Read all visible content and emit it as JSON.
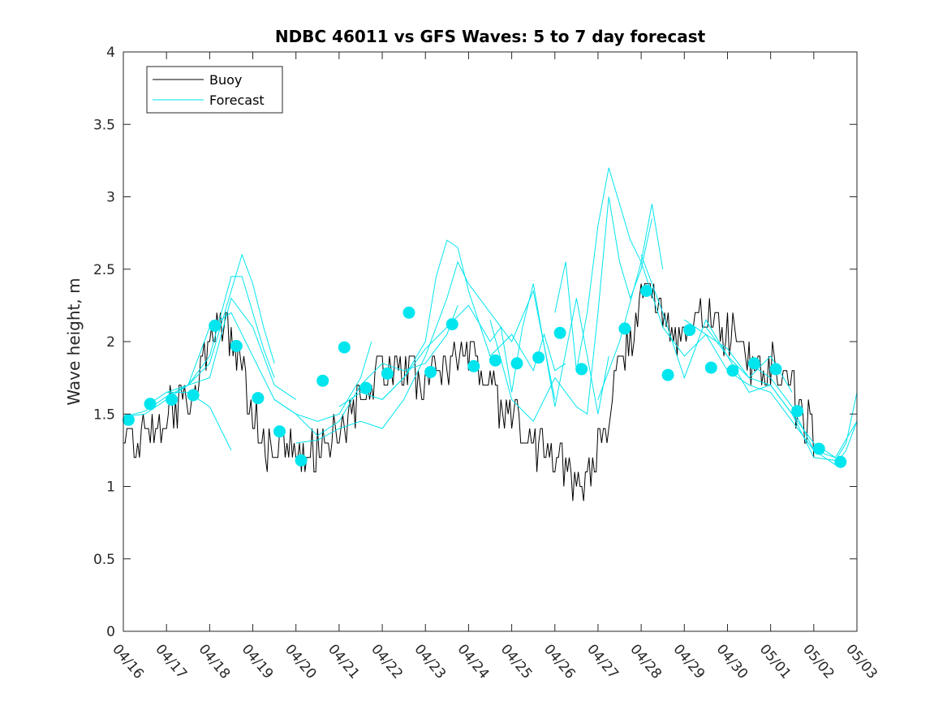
{
  "chart_data": {
    "type": "line",
    "title": "NDBC 46011 vs GFS Waves: 5 to 7 day forecast",
    "xlabel": "",
    "ylabel": "Wave height, m",
    "xlim": [
      0,
      17
    ],
    "ylim": [
      0,
      4
    ],
    "x_unit": "days from 04/16",
    "xticks": [
      "04/16",
      "04/17",
      "04/18",
      "04/19",
      "04/20",
      "04/21",
      "04/22",
      "04/23",
      "04/24",
      "04/25",
      "04/26",
      "04/27",
      "04/28",
      "04/29",
      "04/30",
      "05/01",
      "05/02",
      "05/03"
    ],
    "yticks": [
      "0",
      "0.5",
      "1",
      "1.5",
      "2",
      "2.5",
      "3",
      "3.5",
      "4"
    ],
    "grid": false,
    "legend_position": "top-left",
    "colors": {
      "buoy": "#000000",
      "forecast": "#00e5ee"
    },
    "series": [
      {
        "name": "Buoy",
        "style": "line",
        "anchors": [
          [
            0.0,
            1.35
          ],
          [
            0.25,
            1.25
          ],
          [
            0.5,
            1.35
          ],
          [
            0.75,
            1.4
          ],
          [
            1.0,
            1.5
          ],
          [
            1.25,
            1.55
          ],
          [
            1.5,
            1.6
          ],
          [
            1.75,
            1.75
          ],
          [
            2.0,
            1.95
          ],
          [
            2.2,
            2.2
          ],
          [
            2.35,
            2.05
          ],
          [
            2.5,
            1.95
          ],
          [
            2.75,
            1.8
          ],
          [
            3.0,
            1.5
          ],
          [
            3.25,
            1.3
          ],
          [
            3.5,
            1.25
          ],
          [
            3.75,
            1.3
          ],
          [
            4.0,
            1.2
          ],
          [
            4.25,
            1.18
          ],
          [
            4.5,
            1.25
          ],
          [
            4.75,
            1.3
          ],
          [
            5.0,
            1.4
          ],
          [
            5.25,
            1.5
          ],
          [
            5.5,
            1.6
          ],
          [
            5.75,
            1.7
          ],
          [
            6.0,
            1.75
          ],
          [
            6.25,
            1.78
          ],
          [
            6.5,
            1.8
          ],
          [
            6.75,
            1.8
          ],
          [
            7.0,
            1.75
          ],
          [
            7.25,
            1.8
          ],
          [
            7.5,
            1.85
          ],
          [
            7.75,
            1.9
          ],
          [
            8.0,
            1.92
          ],
          [
            8.25,
            1.8
          ],
          [
            8.5,
            1.65
          ],
          [
            8.75,
            1.55
          ],
          [
            9.0,
            1.45
          ],
          [
            9.25,
            1.35
          ],
          [
            9.5,
            1.3
          ],
          [
            9.75,
            1.25
          ],
          [
            10.0,
            1.2
          ],
          [
            10.25,
            1.12
          ],
          [
            10.5,
            1.08
          ],
          [
            10.75,
            1.07
          ],
          [
            11.0,
            1.2
          ],
          [
            11.25,
            1.5
          ],
          [
            11.5,
            1.8
          ],
          [
            11.75,
            2.0
          ],
          [
            12.0,
            2.3
          ],
          [
            12.15,
            2.5
          ],
          [
            12.35,
            2.35
          ],
          [
            12.5,
            2.15
          ],
          [
            12.75,
            2.05
          ],
          [
            13.0,
            2.0
          ],
          [
            13.25,
            2.1
          ],
          [
            13.5,
            2.2
          ],
          [
            13.75,
            2.2
          ],
          [
            14.0,
            2.05
          ],
          [
            14.25,
            1.95
          ],
          [
            14.5,
            1.85
          ],
          [
            14.75,
            1.8
          ],
          [
            15.0,
            1.85
          ],
          [
            15.25,
            1.75
          ],
          [
            15.5,
            1.65
          ],
          [
            15.75,
            1.45
          ],
          [
            16.0,
            1.35
          ]
        ]
      },
      {
        "name": "Forecast",
        "style": "line",
        "runs": [
          [
            [
              0,
              1.48
            ],
            [
              0.5,
              1.5
            ],
            [
              1.0,
              1.6
            ],
            [
              1.5,
              1.7
            ],
            [
              2.0,
              1.85
            ],
            [
              2.5,
              2.35
            ],
            [
              2.75,
              2.6
            ],
            [
              3.0,
              2.4
            ],
            [
              3.25,
              2.1
            ],
            [
              3.5,
              1.85
            ]
          ],
          [
            [
              0,
              1.48
            ],
            [
              0.5,
              1.52
            ],
            [
              1.0,
              1.62
            ],
            [
              1.5,
              1.7
            ],
            [
              2.0,
              1.9
            ],
            [
              2.5,
              2.45
            ],
            [
              2.75,
              2.45
            ],
            [
              3.0,
              2.2
            ],
            [
              3.25,
              1.95
            ],
            [
              3.5,
              1.75
            ]
          ],
          [
            [
              0.5,
              1.55
            ],
            [
              1.0,
              1.65
            ],
            [
              1.5,
              1.7
            ],
            [
              2.0,
              1.75
            ],
            [
              2.5,
              2.3
            ],
            [
              3.0,
              2.1
            ],
            [
              3.5,
              1.7
            ],
            [
              4.0,
              1.6
            ]
          ],
          [
            [
              1.0,
              1.65
            ],
            [
              1.5,
              1.65
            ],
            [
              2.0,
              1.55
            ],
            [
              2.5,
              1.25
            ]
          ],
          [
            [
              1.5,
              1.7
            ],
            [
              2.0,
              2.1
            ],
            [
              2.5,
              2.2
            ],
            [
              3.0,
              1.9
            ],
            [
              3.5,
              1.6
            ],
            [
              4.0,
              1.5
            ],
            [
              4.5,
              1.45
            ],
            [
              5.0,
              1.5
            ],
            [
              5.5,
              1.75
            ],
            [
              5.75,
              2.0
            ]
          ],
          [
            [
              3.5,
              1.6
            ],
            [
              4.0,
              1.5
            ],
            [
              4.5,
              1.35
            ],
            [
              5.0,
              1.45
            ],
            [
              5.5,
              1.7
            ],
            [
              6.0,
              1.85
            ],
            [
              6.5,
              1.8
            ],
            [
              7.0,
              1.85
            ],
            [
              7.5,
              2.05
            ],
            [
              7.75,
              2.25
            ]
          ],
          [
            [
              4.0,
              1.3
            ],
            [
              4.5,
              1.32
            ],
            [
              5.0,
              1.4
            ],
            [
              5.5,
              1.45
            ],
            [
              6.0,
              1.4
            ],
            [
              6.5,
              1.6
            ],
            [
              7.0,
              1.9
            ],
            [
              7.5,
              2.3
            ],
            [
              7.75,
              2.55
            ],
            [
              8.0,
              2.4
            ],
            [
              8.5,
              2.2
            ],
            [
              9.0,
              2.0
            ],
            [
              9.5,
              2.35
            ],
            [
              10.0,
              1.6
            ]
          ],
          [
            [
              5.0,
              1.55
            ],
            [
              5.5,
              1.65
            ],
            [
              6.0,
              1.6
            ],
            [
              6.5,
              1.75
            ],
            [
              7.0,
              2.0
            ],
            [
              7.25,
              2.45
            ],
            [
              7.5,
              2.7
            ],
            [
              7.75,
              2.65
            ],
            [
              8.0,
              2.35
            ],
            [
              8.5,
              1.9
            ],
            [
              9.0,
              2.05
            ],
            [
              9.5,
              1.8
            ],
            [
              9.75,
              2.05
            ],
            [
              10.0,
              1.8
            ],
            [
              10.25,
              1.85
            ]
          ],
          [
            [
              6.0,
              1.6
            ],
            [
              6.5,
              1.75
            ],
            [
              7.0,
              1.95
            ],
            [
              7.5,
              2.1
            ],
            [
              8.0,
              2.25
            ],
            [
              8.5,
              2.0
            ],
            [
              8.75,
              2.1
            ],
            [
              9.0,
              1.65
            ],
            [
              9.25,
              2.1
            ],
            [
              9.5,
              2.4
            ],
            [
              10.0,
              1.55
            ],
            [
              10.5,
              2.3
            ],
            [
              11.0,
              1.5
            ],
            [
              11.25,
              1.9
            ]
          ],
          [
            [
              8.5,
              2.15
            ],
            [
              9.0,
              1.6
            ],
            [
              9.5,
              1.45
            ],
            [
              10.0,
              1.75
            ],
            [
              10.5,
              1.55
            ],
            [
              10.75,
              1.5
            ],
            [
              11.0,
              2.2
            ],
            [
              11.25,
              3.0
            ],
            [
              11.5,
              2.55
            ],
            [
              11.75,
              2.3
            ],
            [
              12.0,
              2.5
            ],
            [
              12.25,
              2.85
            ]
          ],
          [
            [
              10.0,
              2.2
            ],
            [
              10.25,
              2.55
            ],
            [
              10.5,
              1.8
            ],
            [
              10.75,
              2.2
            ],
            [
              11.0,
              2.8
            ],
            [
              11.25,
              3.2
            ],
            [
              11.5,
              2.95
            ],
            [
              11.75,
              2.7
            ],
            [
              12.0,
              2.55
            ],
            [
              12.25,
              2.95
            ],
            [
              12.5,
              2.5
            ]
          ],
          [
            [
              11.0,
              1.6
            ],
            [
              11.5,
              2.0
            ],
            [
              12.0,
              2.55
            ],
            [
              12.5,
              2.1
            ],
            [
              13.0,
              1.9
            ],
            [
              13.5,
              2.05
            ],
            [
              14.0,
              1.95
            ],
            [
              14.5,
              1.75
            ],
            [
              15.0,
              1.9
            ],
            [
              15.5,
              1.65
            ]
          ],
          [
            [
              12.0,
              2.6
            ],
            [
              12.5,
              2.2
            ],
            [
              13.0,
              1.75
            ],
            [
              13.5,
              2.15
            ],
            [
              14.0,
              1.9
            ],
            [
              14.5,
              1.65
            ],
            [
              15.0,
              1.7
            ],
            [
              15.5,
              1.5
            ],
            [
              16.0,
              1.3
            ],
            [
              16.5,
              1.2
            ]
          ],
          [
            [
              13.0,
              2.15
            ],
            [
              13.5,
              2.05
            ],
            [
              14.0,
              1.8
            ],
            [
              14.5,
              1.7
            ],
            [
              15.0,
              1.65
            ],
            [
              15.5,
              1.45
            ],
            [
              16.0,
              1.25
            ],
            [
              16.5,
              1.2
            ],
            [
              17.0,
              1.45
            ]
          ],
          [
            [
              13.5,
              2.1
            ],
            [
              14.0,
              1.9
            ],
            [
              14.5,
              1.75
            ],
            [
              15.0,
              1.7
            ],
            [
              15.5,
              1.5
            ],
            [
              16.0,
              1.2
            ],
            [
              16.5,
              1.18
            ],
            [
              16.75,
              1.3
            ],
            [
              17.0,
              1.65
            ]
          ],
          [
            [
              14.5,
              1.85
            ],
            [
              15.0,
              1.75
            ],
            [
              15.5,
              1.55
            ],
            [
              16.0,
              1.25
            ],
            [
              16.5,
              1.15
            ],
            [
              16.75,
              1.25
            ],
            [
              17.0,
              1.45
            ]
          ]
        ]
      },
      {
        "name": "",
        "style": "markers",
        "points": [
          [
            0.12,
            1.46
          ],
          [
            0.62,
            1.57
          ],
          [
            1.12,
            1.6
          ],
          [
            1.62,
            1.63
          ],
          [
            2.12,
            2.11
          ],
          [
            2.62,
            1.97
          ],
          [
            3.12,
            1.61
          ],
          [
            3.62,
            1.38
          ],
          [
            4.12,
            1.18
          ],
          [
            4.62,
            1.73
          ],
          [
            5.12,
            1.96
          ],
          [
            5.62,
            1.68
          ],
          [
            6.12,
            1.78
          ],
          [
            6.62,
            2.2
          ],
          [
            7.12,
            1.79
          ],
          [
            7.62,
            2.12
          ],
          [
            8.12,
            1.83
          ],
          [
            8.62,
            1.87
          ],
          [
            9.12,
            1.85
          ],
          [
            9.62,
            1.89
          ],
          [
            10.12,
            2.06
          ],
          [
            10.62,
            1.81
          ],
          [
            11.62,
            2.09
          ],
          [
            12.12,
            2.35
          ],
          [
            12.62,
            1.77
          ],
          [
            13.12,
            2.08
          ],
          [
            13.62,
            1.82
          ],
          [
            14.12,
            1.8
          ],
          [
            14.62,
            1.85
          ],
          [
            15.12,
            1.81
          ],
          [
            15.62,
            1.52
          ],
          [
            16.12,
            1.26
          ],
          [
            16.62,
            1.17
          ]
        ]
      }
    ]
  },
  "legend": {
    "items": [
      {
        "label": "Buoy",
        "color": "#000000"
      },
      {
        "label": "Forecast",
        "color": "#00e5ee"
      }
    ]
  }
}
